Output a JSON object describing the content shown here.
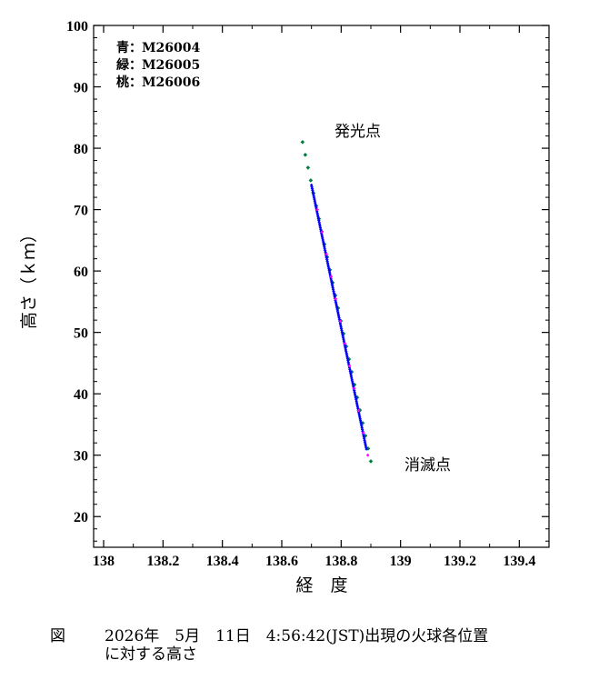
{
  "chart_data": {
    "type": "scatter",
    "xlabel": "経　度",
    "ylabel": "高さ（ｋｍ）",
    "xlim": [
      138,
      139.5
    ],
    "ylim": [
      15,
      100
    ],
    "xticks": [
      138,
      138.2,
      138.4,
      138.6,
      138.8,
      139,
      139.2,
      139.4
    ],
    "xtick_labels": [
      "138",
      "138.2",
      "138.4",
      "138.6",
      "138.8",
      "139",
      "139.2",
      "139.4"
    ],
    "yticks": [
      20,
      30,
      40,
      50,
      60,
      70,
      80,
      90,
      100
    ],
    "ytick_labels": [
      "20",
      "30",
      "40",
      "50",
      "60",
      "70",
      "80",
      "90",
      "100"
    ],
    "legend_position": "top-left",
    "legend": [
      {
        "key": "青",
        "label": "M26004",
        "color": "#0000ff"
      },
      {
        "key": "緑",
        "label": "M26005",
        "color": "#007f3f"
      },
      {
        "key": "桃",
        "label": "M26006",
        "color": "#ff00ff"
      }
    ],
    "annotations": [
      {
        "text": "発光点",
        "x": 138.78,
        "y": 83
      },
      {
        "text": "消滅点",
        "x": 139.02,
        "y": 28
      }
    ],
    "series": [
      {
        "key": "green",
        "color": "#007f3f",
        "x_start": 138.67,
        "y_start": 81,
        "x_end": 138.9,
        "y_end": 29
      },
      {
        "key": "blue",
        "color": "#0000ff",
        "x_start": 138.7,
        "y_start": 74,
        "x_end": 138.885,
        "y_end": 31
      },
      {
        "key": "pink",
        "color": "#ff00ff",
        "x_start": 138.72,
        "y_start": 70,
        "x_end": 138.89,
        "y_end": 30
      }
    ]
  },
  "caption": {
    "label": "図",
    "line1": "2026年　5月　11日　4:56:42(JST)出現の火球各位置",
    "line2": "に対する高さ"
  }
}
